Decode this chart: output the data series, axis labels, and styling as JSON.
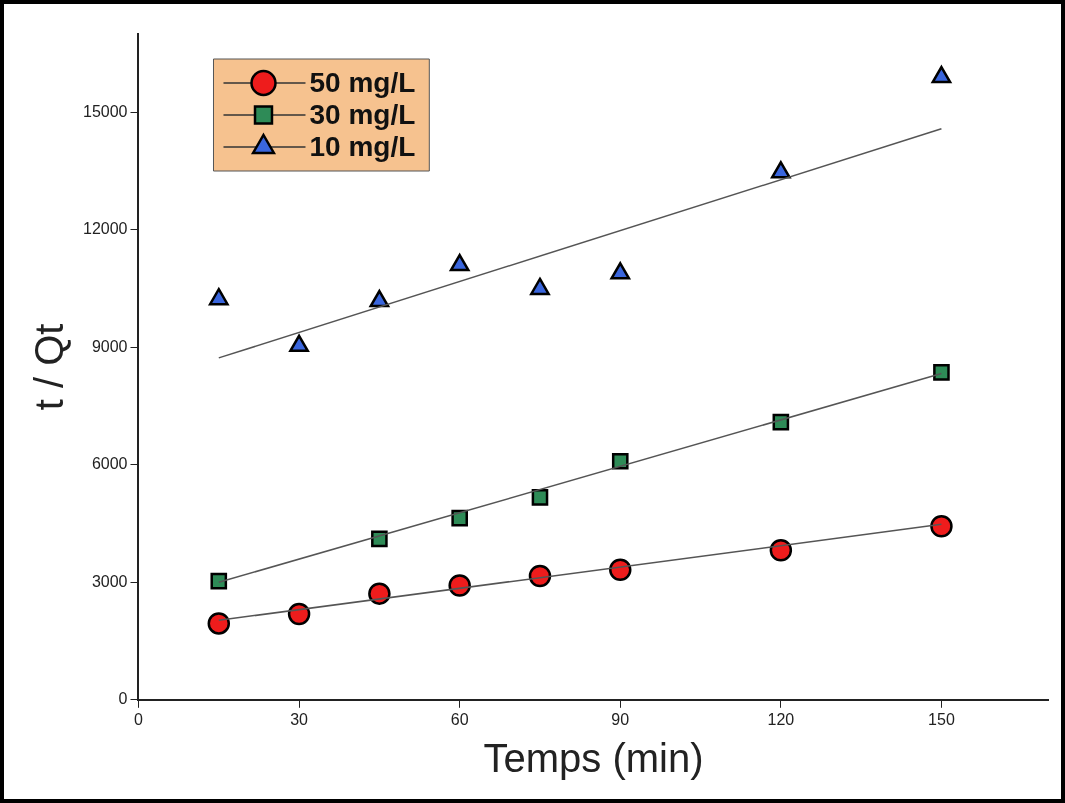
{
  "chart_data": {
    "type": "scatter",
    "xlabel": "Temps (min)",
    "ylabel": "t / Qt",
    "xlim": [
      0,
      170
    ],
    "xticks": [
      0,
      30,
      60,
      90,
      120,
      150
    ],
    "ylim": [
      0,
      17000
    ],
    "yticks": [
      0,
      3000,
      6000,
      9000,
      12000,
      15000
    ],
    "grid": false,
    "legend": "top left",
    "series": [
      {
        "name": "50 mg/L",
        "color": "#ee1c1c",
        "marker": "circle",
        "x": [
          15,
          30,
          45,
          60,
          75,
          90,
          120,
          150
        ],
        "values": [
          1950,
          2190,
          2710,
          2920,
          3160,
          3320,
          3820,
          4430
        ]
      },
      {
        "name": "30 mg/L",
        "color": "#2e8b57",
        "marker": "square",
        "x": [
          15,
          45,
          60,
          75,
          90,
          120,
          150
        ],
        "values": [
          3030,
          4110,
          4640,
          5170,
          6090,
          7090,
          8360
        ]
      },
      {
        "name": "10 mg/L",
        "color": "#3a66dd",
        "marker": "triangle",
        "x": [
          15,
          30,
          45,
          60,
          75,
          90,
          120,
          150
        ],
        "values": [
          10230,
          9040,
          10180,
          11100,
          10490,
          10890,
          13470,
          15900
        ]
      },
      {
        "type": "line",
        "color": "#555555",
        "marker": "none",
        "x": [
          15,
          150
        ],
        "values": [
          2030,
          4480
        ]
      },
      {
        "type": "line",
        "color": "#555555",
        "marker": "none",
        "x": [
          15,
          150
        ],
        "values": [
          3000,
          8330
        ]
      },
      {
        "type": "line",
        "color": "#555555",
        "marker": "none",
        "x": [
          15,
          150
        ],
        "values": [
          8730,
          14580
        ]
      }
    ]
  }
}
